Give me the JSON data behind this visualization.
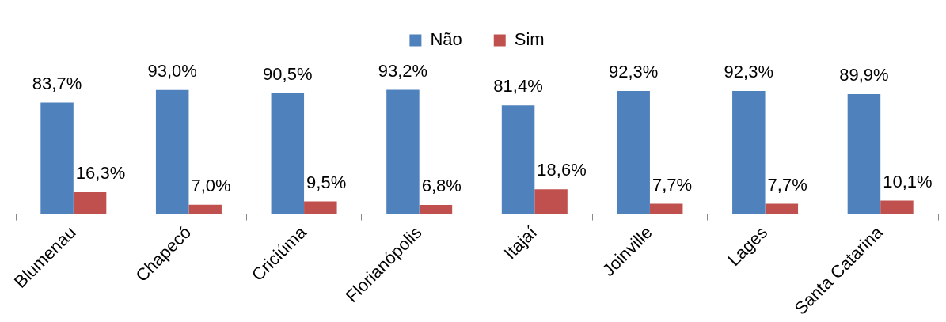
{
  "chart_data": {
    "type": "bar",
    "categories": [
      "Blumenau",
      "Chapecó",
      "Criciúma",
      "Florianópolis",
      "Itajaí",
      "Joinville",
      "Lages",
      "Santa Catarina"
    ],
    "series": [
      {
        "name": "Não",
        "color": "#4f81bd",
        "values": [
          83.7,
          93.0,
          90.5,
          93.2,
          81.4,
          92.3,
          92.3,
          89.9
        ],
        "value_labels": [
          "83,7%",
          "93,0%",
          "90,5%",
          "93,2%",
          "81,4%",
          "92,3%",
          "92,3%",
          "89,9%"
        ]
      },
      {
        "name": "Sim",
        "color": "#c0504d",
        "values": [
          16.3,
          7.0,
          9.5,
          6.8,
          18.6,
          7.7,
          7.7,
          10.1
        ],
        "value_labels": [
          "16,3%",
          "7,0%",
          "9,5%",
          "6,8%",
          "18,6%",
          "7,7%",
          "7,7%",
          "10,1%"
        ]
      }
    ],
    "legend": "top",
    "grid": false,
    "tick_labels": "x"
  }
}
